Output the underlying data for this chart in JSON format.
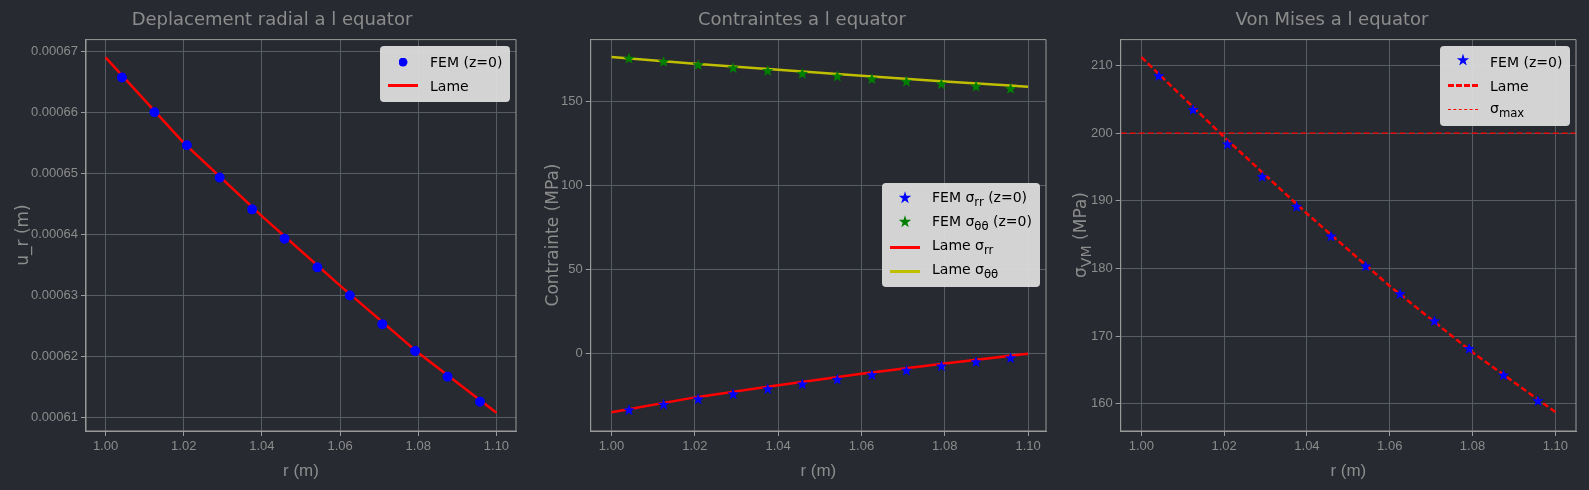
{
  "chart_data": [
    {
      "type": "line",
      "title": "Deplacement radial a l equator",
      "xlabel": "r (m)",
      "ylabel": "u_r (m)",
      "xlim": [
        0.995,
        1.105
      ],
      "ylim": [
        0.0006078,
        0.0006719
      ],
      "xticks": [
        {
          "value": 1,
          "label": "1.00"
        },
        {
          "value": 1.02,
          "label": "1.02"
        },
        {
          "value": 1.04,
          "label": "1.04"
        },
        {
          "value": 1.06,
          "label": "1.06"
        },
        {
          "value": 1.08,
          "label": "1.08"
        },
        {
          "value": 1.1,
          "label": "1.10"
        }
      ],
      "yticks": [
        0.00061,
        0.00062,
        0.00063,
        0.00064,
        0.00065,
        0.00066,
        0.00067
      ],
      "grid": true,
      "legend": "top right",
      "series": [
        {
          "name": "FEM (z=0)",
          "type": "scatter",
          "marker": "circle",
          "color": "#0000ff",
          "x": [
            1.0042,
            1.0125,
            1.0208,
            1.0292,
            1.0375,
            1.0458,
            1.0542,
            1.0625,
            1.0708,
            1.0792,
            1.0875,
            1.0958
          ],
          "values": [
            0.0006657,
            0.00066,
            0.0006546,
            0.0006493,
            0.0006441,
            0.0006393,
            0.0006346,
            0.00063,
            0.0006253,
            0.0006209,
            0.0006167,
            0.0006126
          ]
        },
        {
          "name": "Lame",
          "type": "line",
          "marker": "none",
          "line_style": "solid",
          "color": "#ff0000",
          "x": [
            1,
            1.02,
            1.04,
            1.06,
            1.08,
            1.1
          ],
          "values": [
            0.000669,
            0.000655,
            0.000643,
            0.0006316,
            0.0006206,
            0.0006108
          ]
        }
      ]
    },
    {
      "type": "line",
      "title": "Contraintes a l equator",
      "xlabel": "r (m)",
      "ylabel": "Contrainte (MPa)",
      "xlim": [
        0.995,
        1.1043
      ],
      "ylim": [
        -46,
        186.9
      ],
      "xticks": [
        {
          "value": 1,
          "label": "1.00"
        },
        {
          "value": 1.02,
          "label": "1.02"
        },
        {
          "value": 1.04,
          "label": "1.04"
        },
        {
          "value": 1.06,
          "label": "1.06"
        },
        {
          "value": 1.08,
          "label": "1.08"
        },
        {
          "value": 1.1,
          "label": "1.10"
        }
      ],
      "yticks": [
        0,
        50,
        100,
        150
      ],
      "grid": true,
      "legend": "right",
      "series": [
        {
          "name": "FEM σ$_{rr}$ (z=0)",
          "type": "scatter",
          "marker": "star",
          "color": "#0000ff",
          "x": [
            1.0042,
            1.0125,
            1.0208,
            1.0292,
            1.0375,
            1.0458,
            1.0542,
            1.0625,
            1.0708,
            1.0792,
            1.0875,
            1.0958
          ],
          "values": [
            -33.7,
            -30.4,
            -27.2,
            -24.2,
            -21.2,
            -18.3,
            -15.5,
            -12.8,
            -10.1,
            -7.6,
            -5.1,
            -2.7
          ]
        },
        {
          "name": "FEM σ$_{θθ}$ (z=0)",
          "type": "scatter",
          "marker": "star",
          "color": "#008000",
          "x": [
            1.0042,
            1.0125,
            1.0208,
            1.0292,
            1.0375,
            1.0458,
            1.0542,
            1.0625,
            1.0708,
            1.0792,
            1.0875,
            1.0958
          ],
          "values": [
            175.5,
            173.6,
            171.7,
            169.9,
            168.2,
            166.5,
            164.9,
            163.3,
            161.8,
            160.3,
            158.9,
            157.5
          ]
        },
        {
          "name": "Lame σ$_{rr}$",
          "type": "line",
          "marker": "none",
          "line_style": "solid",
          "color": "#ff0000",
          "x": [
            1,
            1.02,
            1.04,
            1.06,
            1.08,
            1.1
          ],
          "values": [
            -34.9,
            -26,
            -18.8,
            -12,
            -5.8,
            0
          ]
        },
        {
          "name": "Lame σ$_{θθ}$",
          "type": "line",
          "marker": "none",
          "line_style": "solid",
          "color": "#bfbf00",
          "x": [
            1,
            1.02,
            1.04,
            1.06,
            1.08,
            1.1
          ],
          "values": [
            176.6,
            172.6,
            169,
            165.4,
            162,
            158.9
          ]
        }
      ]
    },
    {
      "type": "line",
      "title": "Von Mises a l equator",
      "xlabel": "r (m)",
      "ylabel": "σ$_{VM}$ (MPa)",
      "xlim": [
        0.995,
        1.105
      ],
      "ylim": [
        156,
        213.8
      ],
      "xticks": [
        {
          "value": 1,
          "label": "1.00"
        },
        {
          "value": 1.02,
          "label": "1.02"
        },
        {
          "value": 1.04,
          "label": "1.04"
        },
        {
          "value": 1.06,
          "label": "1.06"
        },
        {
          "value": 1.08,
          "label": "1.08"
        },
        {
          "value": 1.1,
          "label": "1.10"
        }
      ],
      "yticks": [
        160,
        170,
        180,
        190,
        200,
        210
      ],
      "grid": true,
      "legend": "top right",
      "ref_lines": [
        {
          "axis": "y",
          "value": 200,
          "label": "σ$_{max}$",
          "color": "#ff0000",
          "line_style": "dashed"
        }
      ],
      "series": [
        {
          "name": "FEM (z=0)",
          "type": "scatter",
          "marker": "star",
          "color": "#0000ff",
          "x": [
            1.0042,
            1.0125,
            1.0208,
            1.0292,
            1.0375,
            1.0458,
            1.0542,
            1.0625,
            1.0708,
            1.0792,
            1.0875,
            1.0958
          ],
          "values": [
            208.4,
            203.4,
            198.3,
            193.5,
            189.1,
            184.7,
            180.3,
            176.2,
            172.2,
            168.1,
            164.2,
            160.4
          ]
        },
        {
          "name": "Lame",
          "type": "line",
          "marker": "none",
          "line_style": "dashed",
          "color": "#ff0000",
          "x": [
            1,
            1.02,
            1.04,
            1.06,
            1.08,
            1.1
          ],
          "values": [
            211.2,
            199.4,
            188.1,
            177.4,
            167.6,
            158.8
          ]
        }
      ]
    }
  ]
}
